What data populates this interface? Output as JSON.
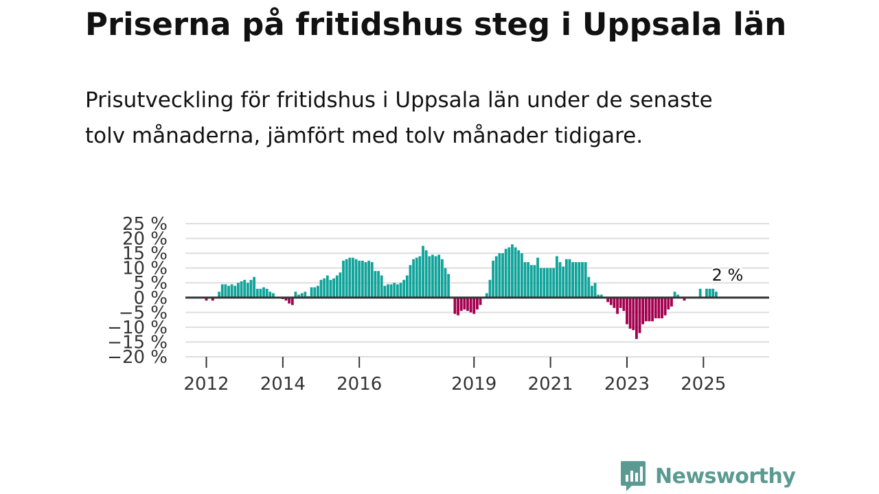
{
  "header": {
    "title": "Priserna på fritidshus steg i Uppsala län",
    "subtitle": "Prisutveckling för fritidshus i Uppsala län under de senaste tolv månaderna, jämfört med tolv månader tidigare."
  },
  "brand": {
    "name": "Newsworthy",
    "icon": "newsworthy-logo-icon",
    "color": "#5b9a92"
  },
  "colors": {
    "positive": "#10a39a",
    "negative": "#a3004f",
    "grid": "#dddddd",
    "zero_line": "#333333"
  },
  "chart_data": {
    "type": "bar",
    "title": "Priserna på fritidshus steg i Uppsala län",
    "xlabel": "",
    "ylabel": "",
    "unit": "%",
    "ylim": [
      -20,
      25
    ],
    "yticks": [
      25,
      20,
      15,
      10,
      5,
      0,
      -5,
      -10,
      -15,
      -20
    ],
    "ytick_labels": [
      "25 %",
      "20 %",
      "15 %",
      "10 %",
      "5 %",
      "0 %",
      "−5 %",
      "−10 %",
      "−15 %",
      "−20 %"
    ],
    "xtick_labels": [
      "2012",
      "2014",
      "2016",
      "2019",
      "2021",
      "2023",
      "2025"
    ],
    "xtick_months": [
      0,
      24,
      48,
      84,
      108,
      132,
      156
    ],
    "start_month_index": 0,
    "start_label": "2012-01",
    "annotation": {
      "text": "2 %",
      "month": 164,
      "value": 2
    },
    "values": [
      -1,
      0,
      -1,
      0,
      2,
      4.5,
      4.5,
      4,
      4.5,
      4,
      5,
      5.5,
      6,
      5,
      6,
      7,
      3,
      3,
      3.5,
      3,
      2,
      1.5,
      0,
      0,
      -0.5,
      -1,
      -2,
      -2.5,
      2,
      1,
      1.5,
      2,
      0.5,
      3.5,
      3.5,
      4,
      6,
      6.5,
      7.5,
      6,
      6.5,
      7.5,
      8.5,
      12.5,
      13,
      13.5,
      13.5,
      13,
      12.5,
      12.5,
      12,
      12.5,
      12,
      9,
      9,
      7.5,
      4,
      4.5,
      4.5,
      5,
      4.5,
      5,
      6,
      7.5,
      11,
      13,
      13.5,
      14,
      17.5,
      16,
      14,
      14.5,
      14,
      14.5,
      13,
      10,
      8,
      0,
      -5.5,
      -6,
      -4.5,
      -4,
      -4.5,
      -5,
      -5.5,
      -4,
      -2.5,
      0,
      1.5,
      6,
      12.5,
      14,
      15,
      15,
      16.5,
      17,
      18,
      17,
      16,
      15,
      12,
      12,
      11,
      11,
      13.5,
      10,
      10,
      10,
      10,
      10,
      14,
      12,
      10.5,
      13,
      13,
      12,
      12,
      12,
      12,
      12,
      7,
      4,
      5,
      1,
      1,
      0,
      -1.5,
      -2.5,
      -3.5,
      -5.5,
      -3.5,
      -4.5,
      -9,
      -10.5,
      -11,
      -14,
      -12,
      -9,
      -8,
      -8,
      -8,
      -7,
      -7,
      -7,
      -6,
      -4,
      -3,
      2,
      1,
      0,
      -1,
      0,
      0,
      0,
      0,
      3,
      0,
      3,
      3,
      3,
      2
    ]
  }
}
